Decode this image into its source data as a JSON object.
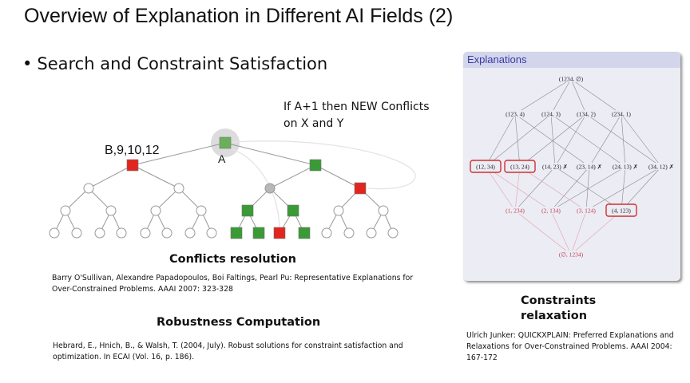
{
  "title": "Overview of Explanation in Different AI Fields (2)",
  "bullet": "Search and Constraint Satisfaction",
  "tree": {
    "annotation_line1": "If A+1 then NEW Conflicts",
    "annotation_line2": "on X and Y",
    "conflict_label": "B,9,10,12",
    "root_label": "A",
    "colors": {
      "ok": "#3a9a35",
      "conflict": "#e0261e",
      "root": "#6ab05a",
      "unknown": "#b8b8b8"
    }
  },
  "conflicts": {
    "heading": "Conflicts resolution",
    "ref_line1": "Barry O'Sullivan, Alexandre Papadopoulos, Boi Faltings, Pearl Pu: Representative Explanations for",
    "ref_line2": "Over-Constrained Problems. AAAI 2007: 323-328"
  },
  "robustness": {
    "heading": "Robustness Computation",
    "ref_line1": "Hebrard, E., Hnich, B., & Walsh, T. (2004, July). Robust solutions for constraint satisfaction and",
    "ref_line2": "optimization. In ECAI (Vol. 16, p. 186)."
  },
  "explanations": {
    "title": "Explanations",
    "top": "(1234, ∅)",
    "level2": [
      "(123, 4)",
      "(124, 3)",
      "(134, 2)",
      "(234, 1)"
    ],
    "level3": [
      "(12, 34)",
      "(13, 24)",
      "(14, 23) ✗",
      "(23, 14) ✗",
      "(24, 13) ✗",
      "(34, 12) ✗"
    ],
    "level4": [
      "(1, 234)",
      "(2, 134)",
      "(3, 124)",
      "(4, 123)"
    ],
    "bottom": "(∅, 1234)",
    "highlighted": [
      "(12, 34)",
      "(13, 24)",
      "(4, 123)"
    ],
    "colors": {
      "highlight": "#d03030",
      "relaxed": "#c83c4c"
    }
  },
  "relaxation": {
    "heading_line1": "Constraints",
    "heading_line2": "relaxation",
    "ref_line1": "Ulrich Junker: QUICKXPLAIN: Preferred Explanations and",
    "ref_line2": "Relaxations for Over-Constrained Problems. AAAI 2004:",
    "ref_line3": "167-172"
  }
}
